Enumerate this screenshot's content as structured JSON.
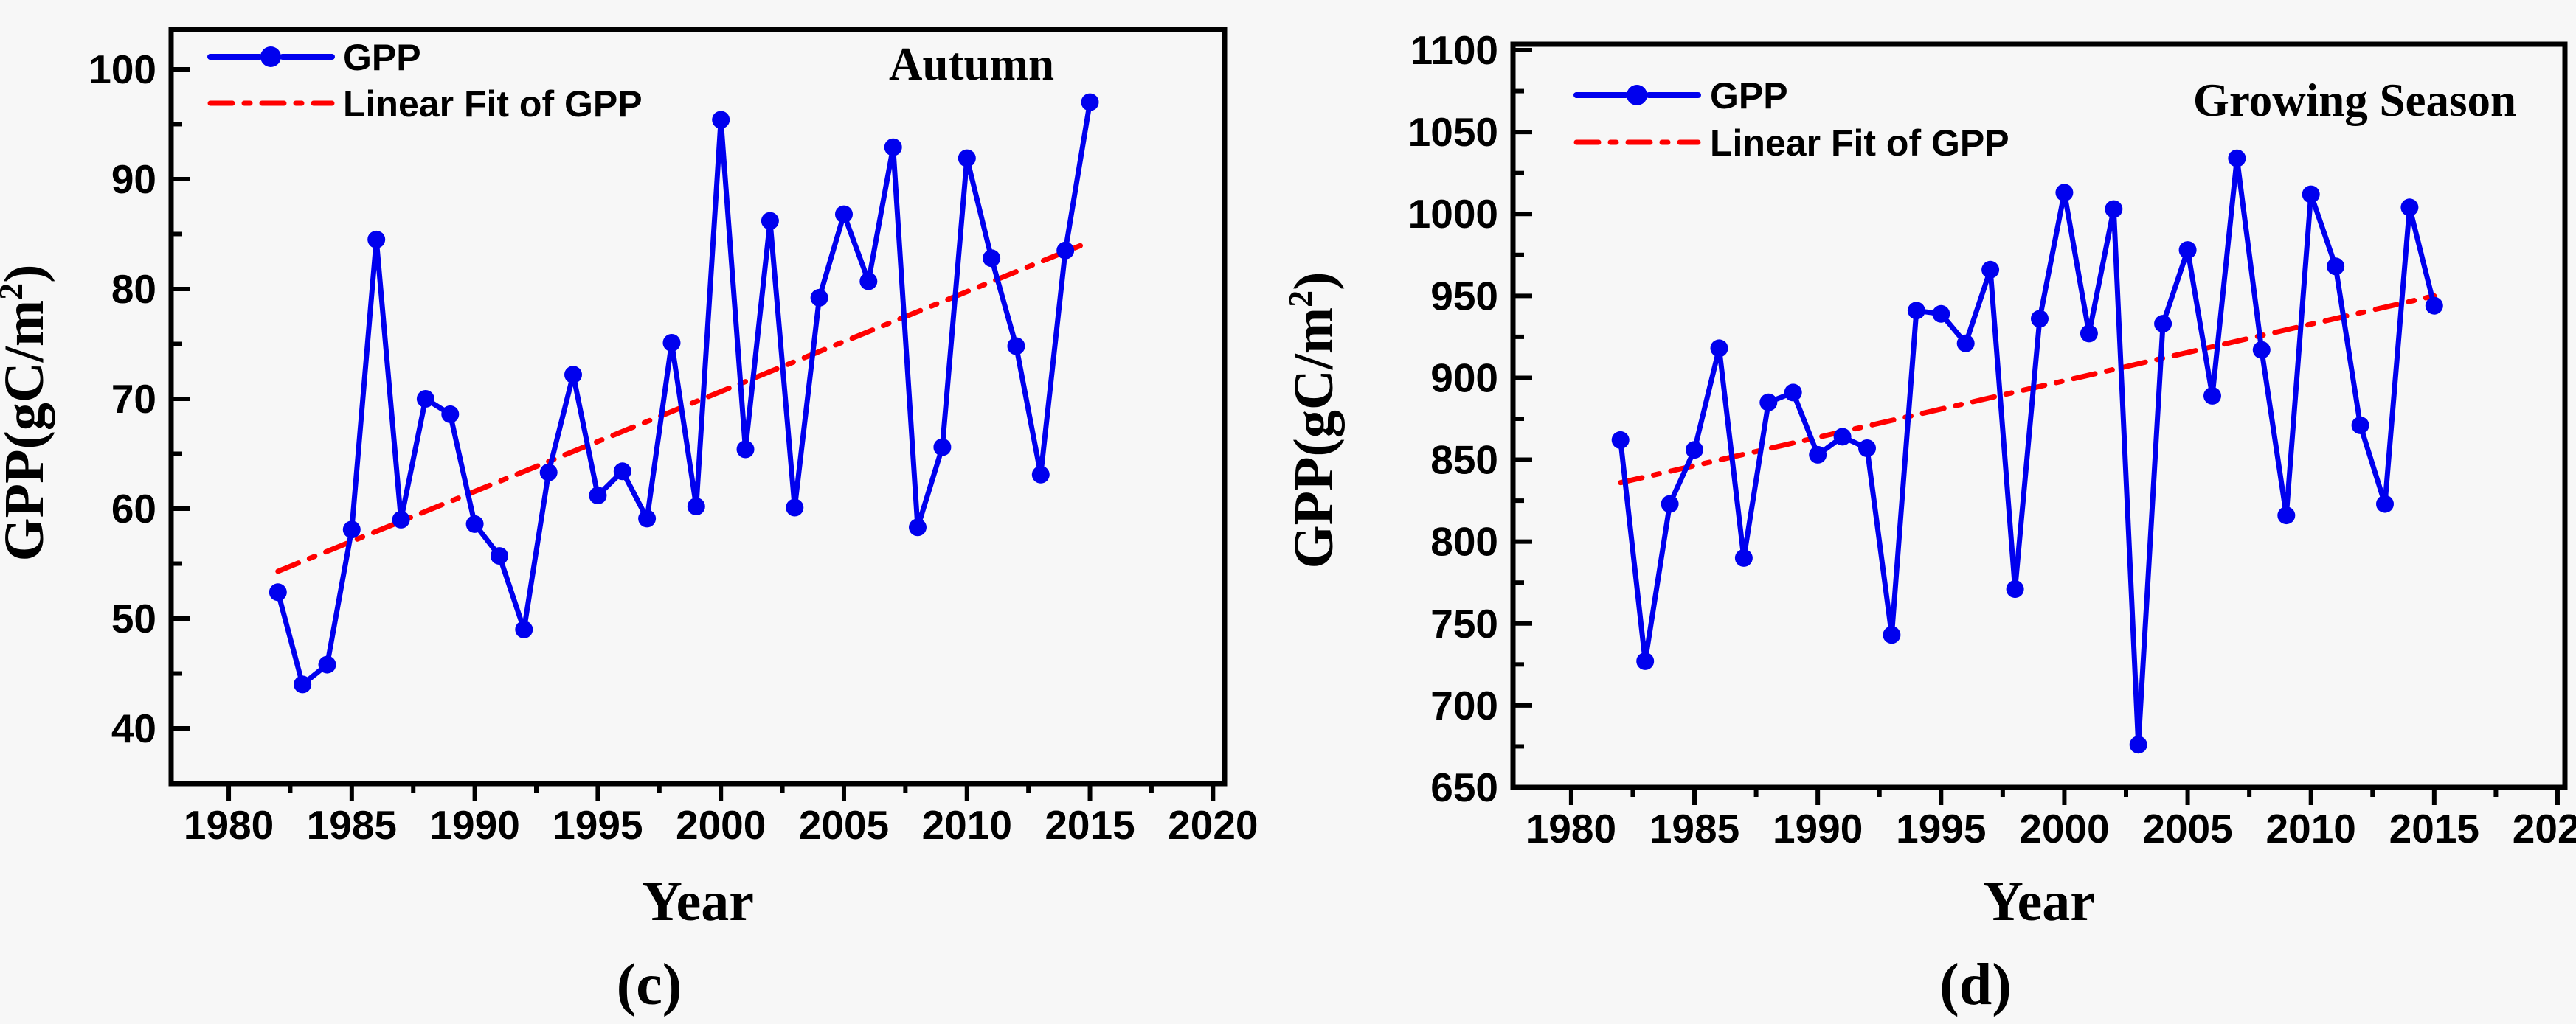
{
  "figure": {
    "background": "#f7f7f7",
    "series_color": "#0000EE",
    "trend_color": "#FF0000"
  },
  "chart_data": [
    {
      "type": "line",
      "panel_label": "(c)",
      "title": "Autumn",
      "xlabel": "Year",
      "ylabel": {
        "prefix": "GPP(gC/m",
        "sup": "2",
        "suffix": ")"
      },
      "legend": [
        {
          "label": "GPP",
          "color": "#0000EE",
          "style": "solid-with-marker"
        },
        {
          "label": "Linear Fit of GPP",
          "color": "#FF0000",
          "style": "dash-dot"
        }
      ],
      "legend_position": "top-left",
      "grid": false,
      "x_ticks": [
        1980,
        1985,
        1990,
        1995,
        2000,
        2005,
        2010,
        2015,
        2020
      ],
      "y_ticks": [
        40,
        50,
        60,
        70,
        80,
        90,
        100
      ],
      "xlim": [
        1977.66,
        2020.47
      ],
      "ylim": [
        34.97,
        103.62
      ],
      "x": [
        1982,
        1983,
        1984,
        1985,
        1986,
        1987,
        1988,
        1989,
        1990,
        1991,
        1992,
        1993,
        1994,
        1995,
        1996,
        1997,
        1998,
        1999,
        2000,
        2001,
        2002,
        2003,
        2004,
        2005,
        2006,
        2007,
        2008,
        2009,
        2010,
        2011,
        2012,
        2013,
        2014,
        2015
      ],
      "y": [
        52.4,
        44,
        45.8,
        58.1,
        84.5,
        59,
        70,
        68.6,
        58.6,
        55.7,
        49,
        63.3,
        72.2,
        61.2,
        63.4,
        59.1,
        75.1,
        60.2,
        95.4,
        65.4,
        86.2,
        60.1,
        79.2,
        86.8,
        80.7,
        92.9,
        58.3,
        65.6,
        91.9,
        82.8,
        74.8,
        63.1,
        83.5,
        97
      ],
      "trend": {
        "x": [
          1982,
          2015
        ],
        "y": [
          54.3,
          84.3
        ]
      }
    },
    {
      "type": "line",
      "panel_label": "(d)",
      "title": "Growing Season",
      "xlabel": "Year",
      "ylabel": {
        "prefix": "GPP(gC/m",
        "sup": "2",
        "suffix": ")"
      },
      "legend": [
        {
          "label": "GPP",
          "color": "#0000EE",
          "style": "solid-with-marker"
        },
        {
          "label": "Linear Fit of GPP",
          "color": "#FF0000",
          "style": "dash-dot"
        }
      ],
      "legend_position": "top-left",
      "grid": false,
      "x_ticks": [
        1980,
        1985,
        1990,
        1995,
        2000,
        2005,
        2010,
        2015,
        2020
      ],
      "y_ticks": [
        650,
        700,
        750,
        800,
        850,
        900,
        950,
        1000,
        1050,
        1100
      ],
      "xlim": [
        1977.64,
        2020.3
      ],
      "ylim": [
        650,
        1103.6
      ],
      "x": [
        1982,
        1983,
        1984,
        1985,
        1986,
        1987,
        1988,
        1989,
        1990,
        1991,
        1992,
        1993,
        1994,
        1995,
        1996,
        1997,
        1998,
        1999,
        2000,
        2001,
        2002,
        2003,
        2004,
        2005,
        2006,
        2007,
        2008,
        2009,
        2010,
        2011,
        2012,
        2013,
        2014,
        2015
      ],
      "y": [
        862,
        727,
        823,
        856,
        918,
        790,
        885,
        891,
        853,
        864,
        857,
        743,
        941,
        939,
        921,
        966,
        771,
        936,
        1013,
        927,
        1003,
        676,
        933,
        978,
        889,
        1034,
        917,
        816,
        1012,
        968,
        871,
        823,
        1004,
        944
      ],
      "trend": {
        "x": [
          1982,
          2015
        ],
        "y": [
          836,
          950
        ]
      }
    }
  ]
}
